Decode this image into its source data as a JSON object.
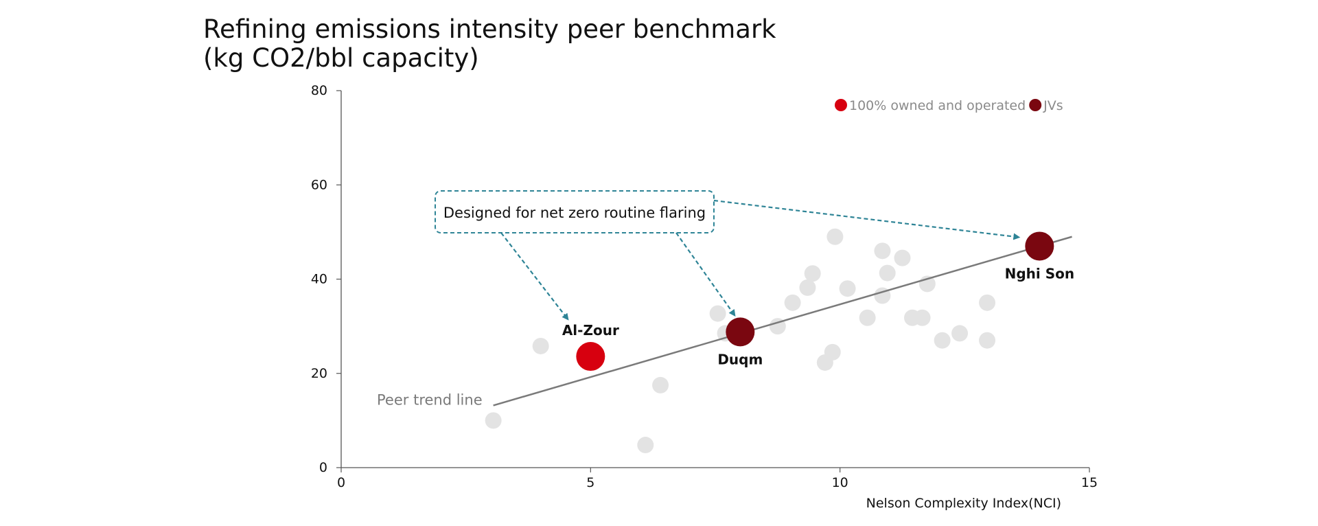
{
  "chart_data": {
    "type": "scatter",
    "title_lines": [
      "Refining emissions intensity peer benchmark",
      "(kg CO2/bbl capacity)"
    ],
    "xlabel": "Nelson Complexity Index(NCI)",
    "ylabel": "",
    "xlim": [
      0,
      15
    ],
    "ylim": [
      0,
      80
    ],
    "x_ticks": [
      0,
      5,
      10,
      15
    ],
    "y_ticks": [
      0,
      20,
      40,
      60,
      80
    ],
    "grid": false,
    "legend_position": "top-right",
    "legend": [
      {
        "label": "100% owned and operated",
        "color": "#d7000f"
      },
      {
        "label": "JVs",
        "color": "#7a0710"
      }
    ],
    "series": [
      {
        "role": "peers",
        "color": "#e3e3e3",
        "points": [
          {
            "x": 3.05,
            "y": 10.0
          },
          {
            "x": 4.0,
            "y": 25.8
          },
          {
            "x": 6.1,
            "y": 4.8
          },
          {
            "x": 6.4,
            "y": 17.5
          },
          {
            "x": 7.55,
            "y": 32.7
          },
          {
            "x": 7.7,
            "y": 28.5
          },
          {
            "x": 8.75,
            "y": 30.0
          },
          {
            "x": 9.05,
            "y": 35.0
          },
          {
            "x": 9.35,
            "y": 38.2
          },
          {
            "x": 9.45,
            "y": 41.2
          },
          {
            "x": 9.7,
            "y": 22.3
          },
          {
            "x": 9.85,
            "y": 24.5
          },
          {
            "x": 9.9,
            "y": 49.0
          },
          {
            "x": 10.15,
            "y": 38.0
          },
          {
            "x": 10.55,
            "y": 31.8
          },
          {
            "x": 10.85,
            "y": 46.0
          },
          {
            "x": 10.85,
            "y": 36.5
          },
          {
            "x": 10.95,
            "y": 41.3
          },
          {
            "x": 11.25,
            "y": 44.5
          },
          {
            "x": 11.45,
            "y": 31.8
          },
          {
            "x": 11.65,
            "y": 31.8
          },
          {
            "x": 11.75,
            "y": 39.0
          },
          {
            "x": 12.05,
            "y": 27.0
          },
          {
            "x": 12.4,
            "y": 28.5
          },
          {
            "x": 12.95,
            "y": 35.0
          },
          {
            "x": 12.95,
            "y": 27.0
          }
        ]
      },
      {
        "role": "highlight",
        "points": [
          {
            "x": 5.0,
            "y": 23.6,
            "label": "Al-Zour",
            "category": "100% owned and operated"
          },
          {
            "x": 8.0,
            "y": 28.8,
            "label": "Duqm",
            "category": "JVs"
          },
          {
            "x": 14.0,
            "y": 47.0,
            "label": "Nghi Son",
            "category": "JVs"
          }
        ]
      }
    ],
    "trend_line": {
      "label": "Peer trend line",
      "from": [
        3.05,
        13.2
      ],
      "to": [
        14.65,
        49.0
      ]
    },
    "annotation": {
      "text": "Designed for net zero routine flaring",
      "targets": [
        "Al-Zour",
        "Duqm",
        "Nghi Son"
      ]
    }
  },
  "colors": {
    "peer": "#e3e3e3",
    "owned": "#d7000f",
    "jv": "#7a0710",
    "trend": "#7a7a7a",
    "annotation": "#2e8496",
    "axis": "#555555"
  }
}
